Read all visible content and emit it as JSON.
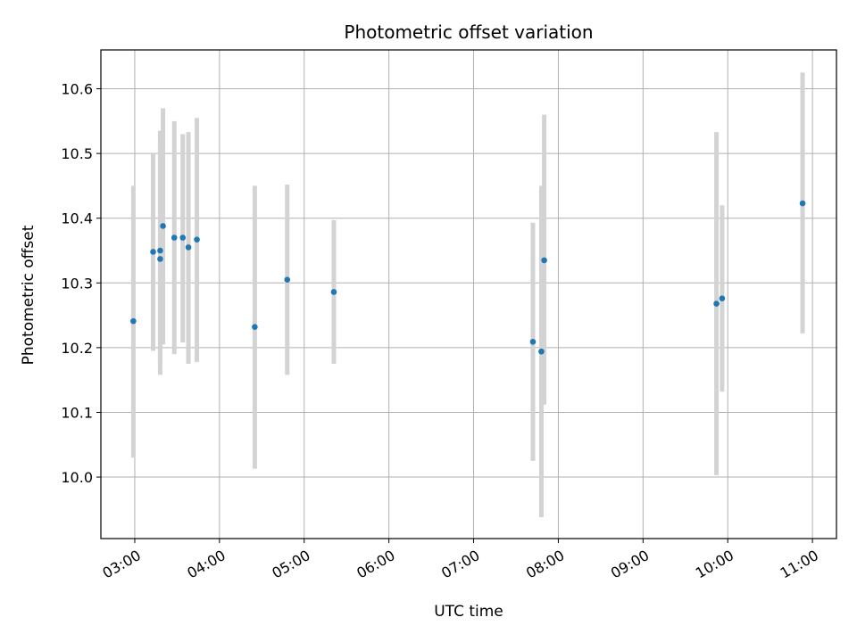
{
  "chart_data": {
    "type": "scatter",
    "title": "Photometric offset variation",
    "xlabel": "UTC time",
    "ylabel": "Photometric offset",
    "x_axis_kind": "time",
    "xlim": [
      "02:36",
      "11:17"
    ],
    "ylim": [
      9.905,
      10.66
    ],
    "grid": true,
    "x_ticks": [
      "03:00",
      "04:00",
      "05:00",
      "06:00",
      "07:00",
      "08:00",
      "09:00",
      "10:00",
      "11:00"
    ],
    "y_ticks": [
      "10.0",
      "10.1",
      "10.2",
      "10.3",
      "10.4",
      "10.5",
      "10.6"
    ],
    "colors": {
      "marker": "#1f77b4",
      "errorbar": "#d3d3d3",
      "grid": "#b0b0b0",
      "frame": "#000000"
    },
    "series": [
      {
        "points": [
          {
            "x": "02:59",
            "y": 10.241,
            "err_low": 10.03,
            "err_high": 10.45
          },
          {
            "x": "03:13",
            "y": 10.348,
            "err_low": 10.195,
            "err_high": 10.5
          },
          {
            "x": "03:18",
            "y": 10.337,
            "err_low": 10.158,
            "err_high": 10.535
          },
          {
            "x": "03:18",
            "y": 10.35,
            "err_low": 10.18,
            "err_high": 10.52
          },
          {
            "x": "03:20",
            "y": 10.388,
            "err_low": 10.205,
            "err_high": 10.57
          },
          {
            "x": "03:28",
            "y": 10.37,
            "err_low": 10.19,
            "err_high": 10.55
          },
          {
            "x": "03:34",
            "y": 10.37,
            "err_low": 10.208,
            "err_high": 10.53
          },
          {
            "x": "03:38",
            "y": 10.355,
            "err_low": 10.175,
            "err_high": 10.533
          },
          {
            "x": "03:44",
            "y": 10.367,
            "err_low": 10.178,
            "err_high": 10.555
          },
          {
            "x": "04:25",
            "y": 10.232,
            "err_low": 10.013,
            "err_high": 10.45
          },
          {
            "x": "04:48",
            "y": 10.305,
            "err_low": 10.158,
            "err_high": 10.452
          },
          {
            "x": "05:21",
            "y": 10.286,
            "err_low": 10.175,
            "err_high": 10.397
          },
          {
            "x": "07:42",
            "y": 10.209,
            "err_low": 10.025,
            "err_high": 10.393
          },
          {
            "x": "07:48",
            "y": 10.194,
            "err_low": 9.938,
            "err_high": 10.45
          },
          {
            "x": "07:50",
            "y": 10.335,
            "err_low": 10.112,
            "err_high": 10.56
          },
          {
            "x": "09:52",
            "y": 10.268,
            "err_low": 10.003,
            "err_high": 10.533
          },
          {
            "x": "09:56",
            "y": 10.276,
            "err_low": 10.132,
            "err_high": 10.42
          },
          {
            "x": "10:53",
            "y": 10.423,
            "err_low": 10.222,
            "err_high": 10.625
          }
        ]
      }
    ]
  }
}
